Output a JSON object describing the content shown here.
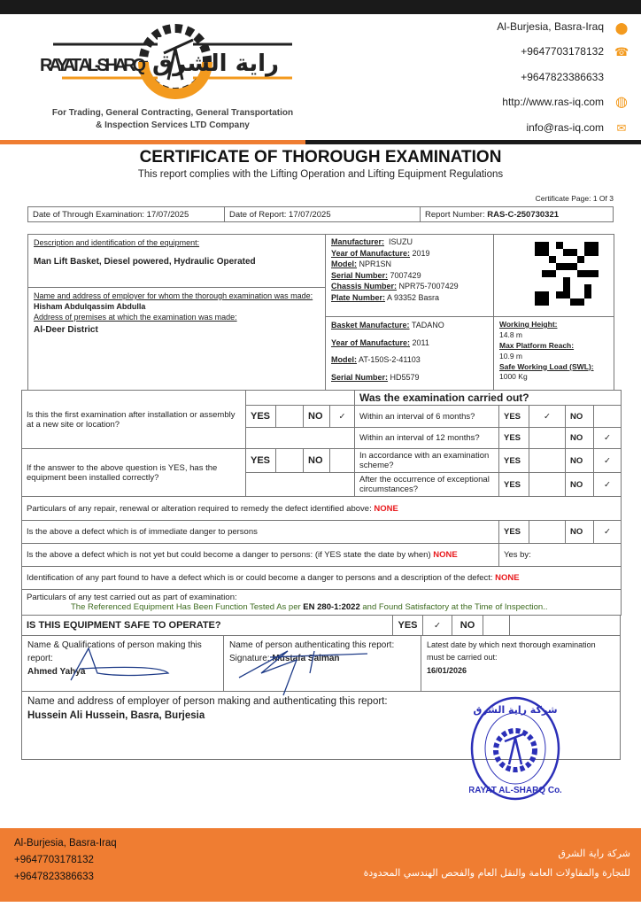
{
  "header": {
    "logo": {
      "name_en": "RAYAT AL-SHARQ",
      "name_ar": "راية الشرق"
    },
    "tagline_1": "For Trading, General Contracting, General Transportation",
    "tagline_2": "& Inspection Services LTD Company",
    "contacts": [
      {
        "text": "Al-Burjesia, Basra-Iraq",
        "icon": "location-pin-icon"
      },
      {
        "text": "+9647703178132",
        "icon": "phone-icon"
      },
      {
        "text": "+9647823386633",
        "icon": ""
      },
      {
        "text": "http://www.ras-iq.com",
        "icon": "globe-icon"
      },
      {
        "text": "info@ras-iq.com",
        "icon": "envelope-icon"
      }
    ],
    "colors": {
      "accent": "#ef7d32",
      "dark": "#1a1a1a"
    }
  },
  "title": "CERTIFICATE OF THOROUGH EXAMINATION",
  "subtitle": "This report complies with the Lifting Operation and Lifting Equipment Regulations",
  "certificate_page": "Certificate Page: 1 Of 3",
  "dates": {
    "exam_date": "Date of Through Examination: 17/07/2025",
    "report_date": "Date of Report: 17/07/2025",
    "report_number_label": "Report Number: ",
    "report_number": "RAS-C-250730321"
  },
  "equipment": {
    "desc_label": "Description and identification of the equipment:",
    "desc": "Man Lift Basket, Diesel powered, Hydraulic Operated",
    "employer_label": "Name and address of employer for whom the thorough examination was made:",
    "employer": "Hisham Abdulqassim Abdulla",
    "premises_label": "Address of premises at which the examination was made:",
    "premises": "Al-Deer District",
    "vehicle": [
      {
        "label": "Manufacturer:",
        "value": "  ISUZU"
      },
      {
        "label": "Year of Manufacture:",
        "value": " 2019"
      },
      {
        "label": "Model:",
        "value": " NPR1SN"
      },
      {
        "label": "Serial Number:",
        "value": " 7007429"
      },
      {
        "label": "Chassis Number:",
        "value": " NPR75-7007429"
      },
      {
        "label": "Plate Number:",
        "value": " A 93352 Basra"
      }
    ],
    "basket": [
      {
        "label": "Basket Manufacture:",
        "value": " TADANO"
      },
      {
        "label": "Year of Manufacture:",
        "value": " 2011"
      },
      {
        "label": "Model:",
        "value": " AT-150S-2-41103"
      },
      {
        "label": "Serial Number:",
        "value": " HD5579"
      }
    ],
    "specs": [
      {
        "label": "Working Height:",
        "value": "14.8 m"
      },
      {
        "label": "Max Platform Reach:",
        "value": "10.9 m"
      },
      {
        "label": "Safe Working Load (SWL):",
        "value": "1000 Kg"
      }
    ]
  },
  "exam": {
    "yes": "YES",
    "no": "NO",
    "check": "✓",
    "q1": "Is this the first examination after installation or assembly at a new site or location?",
    "q2": "If the answer to the above question is YES, has the equipment been installed correctly?",
    "carried_out": "Was the examination carried out?",
    "intervals": [
      {
        "label": "Within an interval of 6 months?",
        "yes": "✓",
        "no": ""
      },
      {
        "label": "Within an interval of 12 months?",
        "yes": "",
        "no": "✓"
      },
      {
        "label": "In accordance with an examination scheme?",
        "yes": "",
        "no": "✓"
      },
      {
        "label": "After the occurrence of exceptional circumstances?",
        "yes": "",
        "no": "✓"
      }
    ],
    "repair": "Particulars of any repair, renewal or alteration required to remedy the defect identified above: ",
    "immediate": "Is the above a defect which is of immediate danger to persons",
    "not_yet": "Is the above a defect which is not yet but could become a danger to persons: (if YES state the date by when) ",
    "yes_by": "Yes by:",
    "identification": "Identification of any part found to have a defect which is or could become a danger to persons and a description of the defect: ",
    "none": "NONE",
    "test_label": "Particulars of any test carried out as part of examination:",
    "test_pre": "The Referenced Equipment Has Been Function Tested As per ",
    "test_std": "EN 280-1:2022",
    "test_post": " and Found Satisfactory at the Time of Inspection..",
    "safe": "IS THIS EQUIPMENT SAFE TO OPERATE?"
  },
  "persons": {
    "maker_label": "Name & Qualifications of person making this report:",
    "maker": "Ahmed Yahya",
    "auth_label": "Name of person authenticating this report:",
    "signature_label": "Signature: ",
    "auth": "Mustafa Salman",
    "next_label": "Latest date by which next thorough examination must be carried out:",
    "next_date": "16/01/2026",
    "employer_label": "Name and address of employer of person making and authenticating this report:",
    "employer": "Hussein Ali Hussein, Basra, Burjesia"
  },
  "stamp": {
    "text_ar": "شركة راية الشرق",
    "text_en": "RAYAT AL-SHARQ Co."
  },
  "footer": {
    "address": "Al-Burjesia, Basra-Iraq",
    "phone1": "+9647703178132",
    "phone2": "+9647823386633",
    "ar_1": "شركة راية الشرق",
    "ar_2": "للتجارة والمقاولات العامة والنقل العام والفحص الهندسي المحدودة"
  }
}
